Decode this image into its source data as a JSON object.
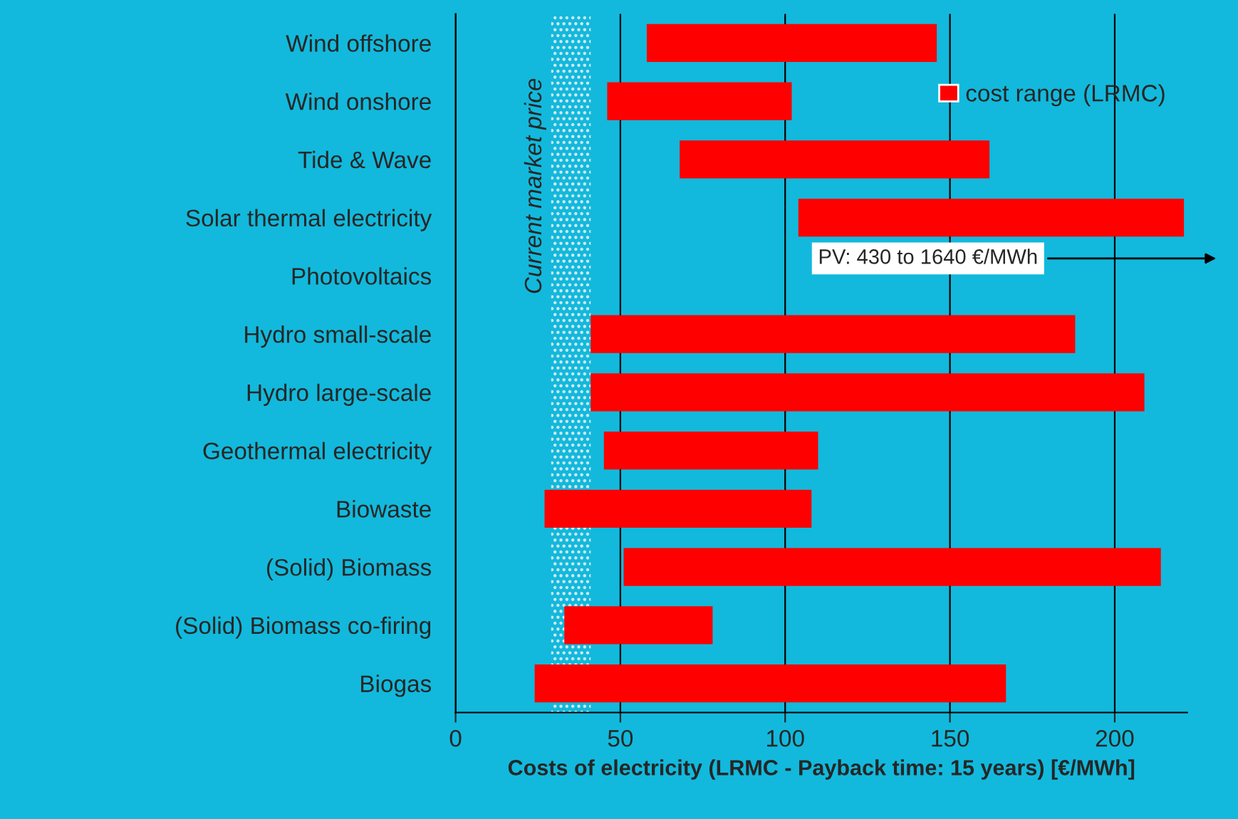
{
  "chart_data": {
    "type": "bar",
    "orientation": "horizontal",
    "xlabel": "Costs of electricity (LRMC - Payback time: 15 years) [€/MWh]",
    "categories": [
      "Wind offshore",
      "Wind onshore",
      "Tide & Wave",
      "Solar thermal electricity",
      "Photovoltaics",
      "Hydro small-scale",
      "Hydro large-scale",
      "Geothermal electricity",
      "Biowaste",
      "(Solid) Biomass",
      "(Solid) Biomass co-firing",
      "Biogas"
    ],
    "series": [
      {
        "name": "cost range (LRMC)",
        "color": "#ff0000",
        "values": [
          88,
          56,
          94,
          117,
          null,
          147,
          168,
          65,
          81,
          163,
          45,
          143
        ],
        "base": [
          58,
          46,
          68,
          104,
          null,
          41,
          41,
          45,
          27,
          51,
          33,
          24
        ]
      }
    ],
    "xlim": [
      0,
      222
    ],
    "xticks": [
      0,
      50,
      100,
      150,
      200
    ],
    "grid": "x",
    "legend": "top right",
    "bands": [
      {
        "axis": "x",
        "from": 29,
        "to": 41,
        "label": "Current market price",
        "color": "#d8e8f0"
      }
    ],
    "annotations": [
      "PV: 430 to 1640 €/MWh"
    ]
  }
}
